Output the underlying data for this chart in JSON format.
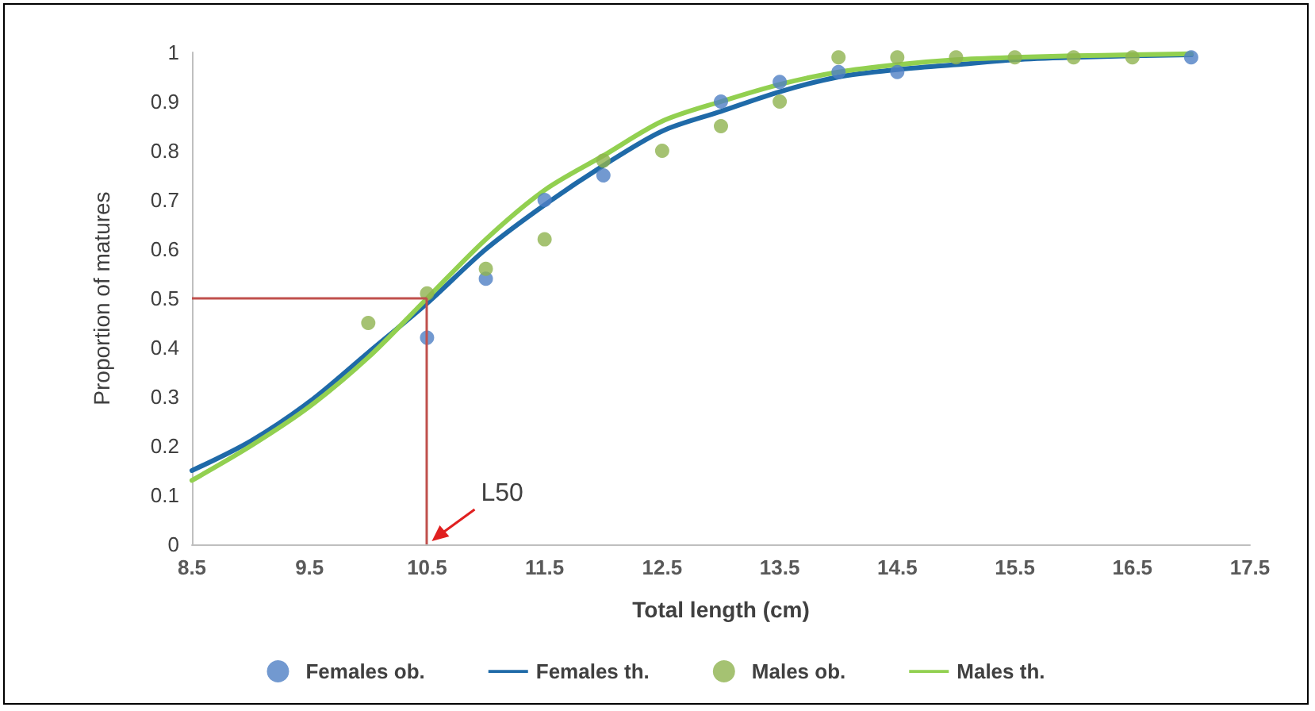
{
  "chart_data": {
    "type": "line",
    "xlabel": "Total length (cm)",
    "ylabel": "Proportion of matures",
    "xlim": [
      8.5,
      17.5
    ],
    "xticks": [
      8.5,
      9.5,
      10.5,
      11.5,
      12.5,
      13.5,
      14.5,
      15.5,
      16.5,
      17.5
    ],
    "ylim": [
      0,
      1
    ],
    "yticks": [
      0,
      0.1,
      0.2,
      0.3,
      0.4,
      0.5,
      0.6,
      0.7,
      0.8,
      0.9,
      1
    ],
    "grid": false,
    "legend": "bottom",
    "series": [
      {
        "name": "Females ob.",
        "type": "scatter",
        "color": "#4f7fc4",
        "x": [
          10.5,
          11,
          11.5,
          12,
          13,
          13.5,
          14,
          14.5,
          17
        ],
        "values": [
          0.42,
          0.54,
          0.7,
          0.75,
          0.9,
          0.94,
          0.96,
          0.96,
          0.99
        ]
      },
      {
        "name": "Females th.",
        "type": "line",
        "color": "#1f6aa8",
        "x": [
          8.5,
          9,
          9.5,
          10,
          10.5,
          11,
          11.5,
          12,
          12.5,
          13,
          13.5,
          14,
          14.5,
          15,
          15.5,
          16,
          16.5,
          17
        ],
        "values": [
          0.15,
          0.21,
          0.29,
          0.39,
          0.49,
          0.6,
          0.69,
          0.77,
          0.84,
          0.88,
          0.92,
          0.95,
          0.965,
          0.975,
          0.985,
          0.99,
          0.993,
          0.995
        ]
      },
      {
        "name": "Males ob.",
        "type": "scatter",
        "color": "#8fb34f",
        "x": [
          10,
          10.5,
          11,
          11.5,
          12,
          12.5,
          13,
          13.5,
          14,
          14.5,
          15,
          15.5,
          16,
          16.5
        ],
        "values": [
          0.45,
          0.51,
          0.56,
          0.62,
          0.78,
          0.8,
          0.85,
          0.9,
          0.99,
          0.99,
          0.99,
          0.99,
          0.99,
          0.99
        ]
      },
      {
        "name": "Males th.",
        "type": "line",
        "color": "#92d050",
        "x": [
          8.5,
          9,
          9.5,
          10,
          10.5,
          11,
          11.5,
          12,
          12.5,
          13,
          13.5,
          14,
          14.5,
          15,
          15.5,
          16,
          16.5,
          17
        ],
        "values": [
          0.13,
          0.2,
          0.28,
          0.38,
          0.5,
          0.62,
          0.72,
          0.79,
          0.86,
          0.9,
          0.935,
          0.96,
          0.975,
          0.985,
          0.99,
          0.993,
          0.995,
          0.997
        ]
      }
    ],
    "ref_lines": [
      {
        "axis": "x",
        "value": 10.5,
        "color": "#c0504d"
      },
      {
        "axis": "y",
        "value": 0.5,
        "color": "#c0504d"
      }
    ],
    "annotations": [
      {
        "text": "L50",
        "x": 10.5,
        "y": 0
      }
    ]
  }
}
